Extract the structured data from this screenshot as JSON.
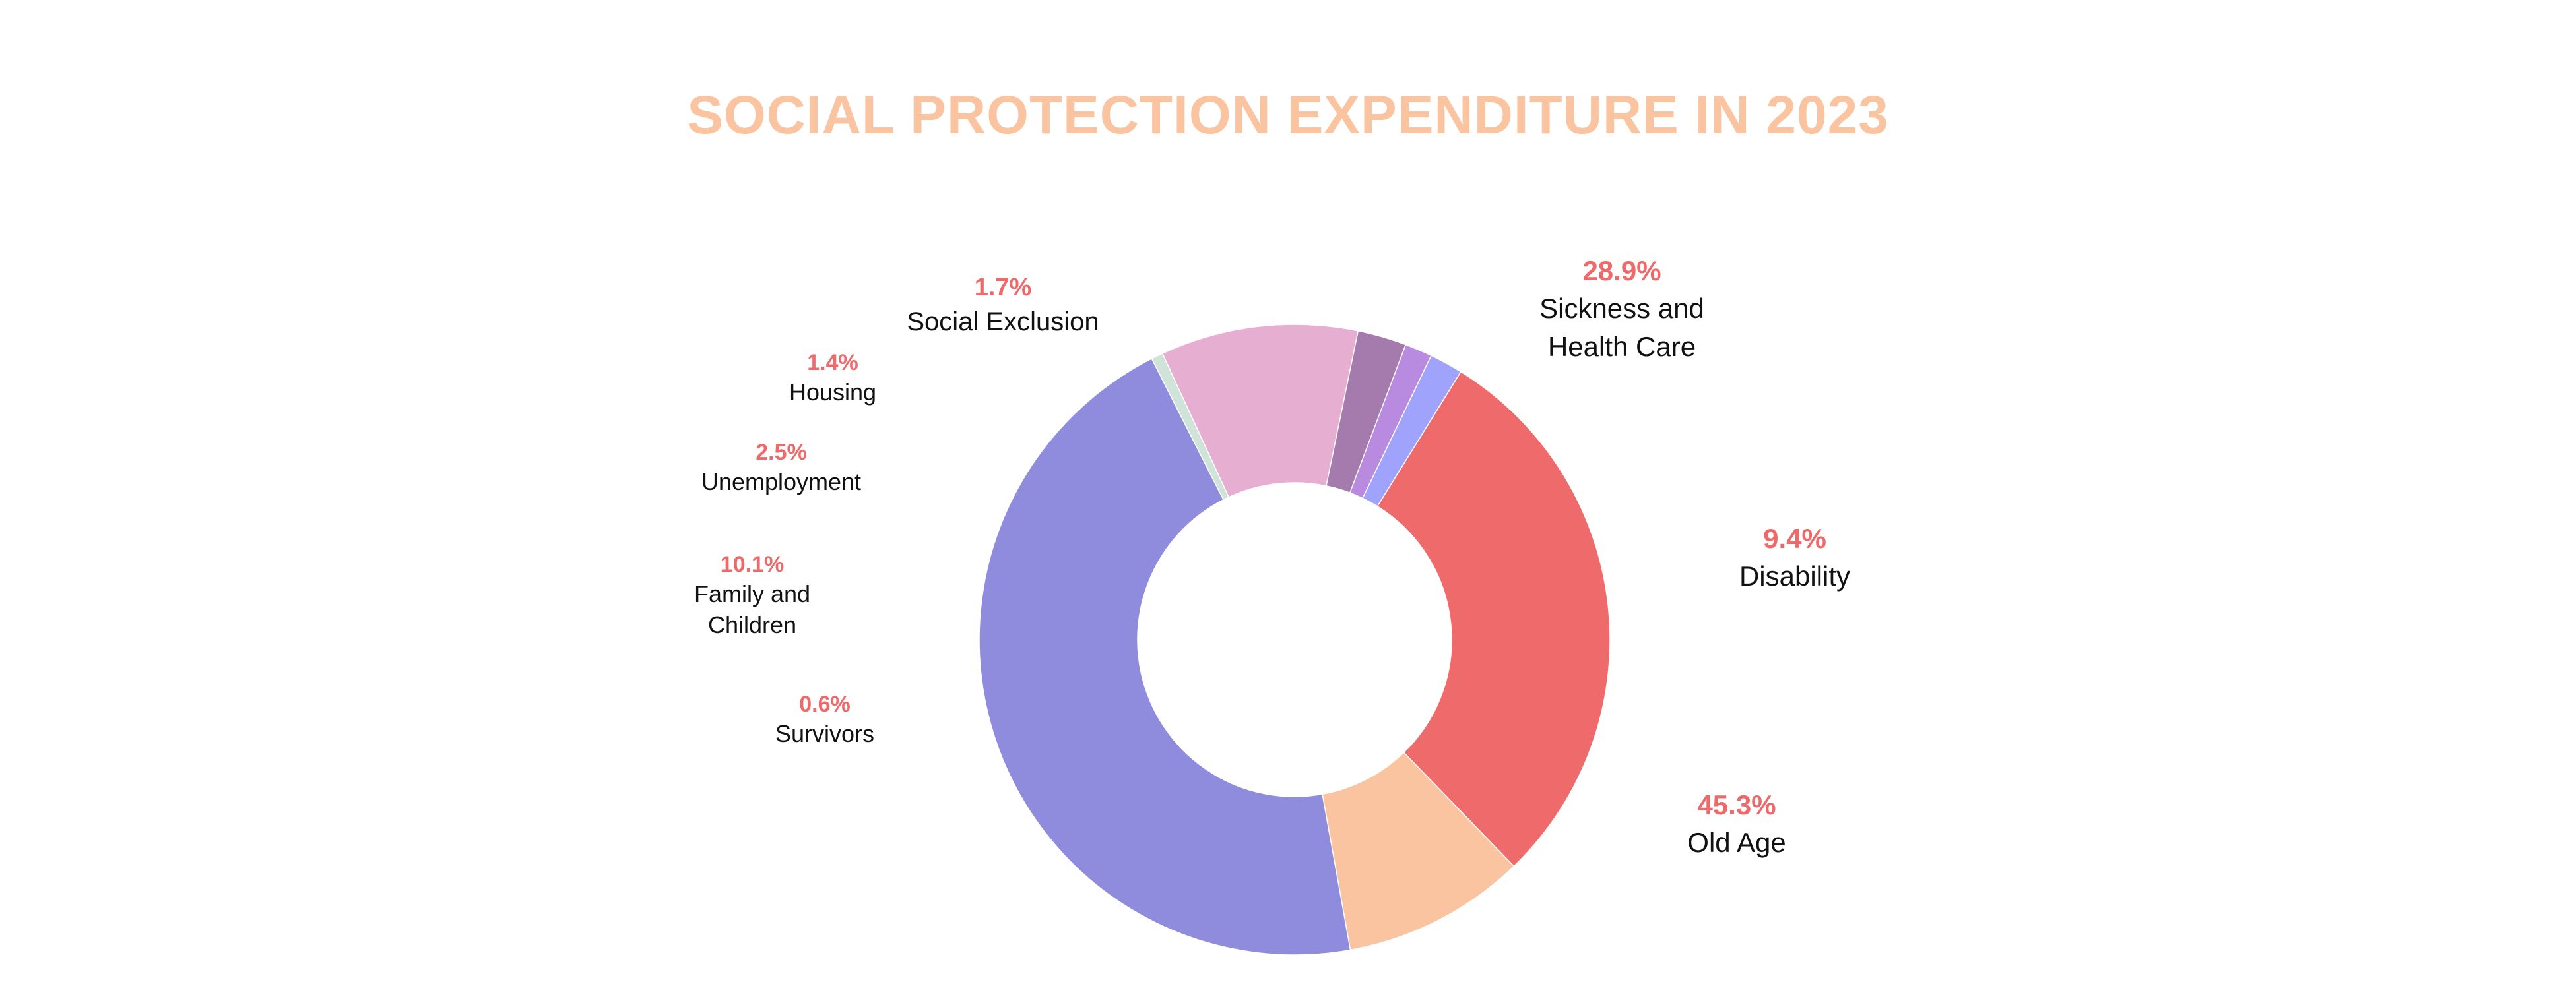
{
  "chart_data": {
    "type": "pie",
    "variant": "donut",
    "title": "SOCIAL PROTECTION EXPENDITURE IN 2023",
    "slices": [
      {
        "label": "Sickness and Health Care",
        "label_lines": [
          "Sickness and",
          "Health Care"
        ],
        "value": 28.9,
        "value_label": "28.9%",
        "color": "#ef6b6b"
      },
      {
        "label": "Disability",
        "label_lines": [
          "Disability"
        ],
        "value": 9.4,
        "value_label": "9.4%",
        "color": "#f9c49f"
      },
      {
        "label": "Old Age",
        "label_lines": [
          "Old Age"
        ],
        "value": 45.3,
        "value_label": "45.3%",
        "color": "#8f8cde"
      },
      {
        "label": "Survivors",
        "label_lines": [
          "Survivors"
        ],
        "value": 0.6,
        "value_label": "0.6%",
        "color": "#cfe3d8"
      },
      {
        "label": "Family and Children",
        "label_lines": [
          "Family and",
          "Children"
        ],
        "value": 10.1,
        "value_label": "10.1%",
        "color": "#e6aed1"
      },
      {
        "label": "Unemployment",
        "label_lines": [
          "Unemployment"
        ],
        "value": 2.5,
        "value_label": "2.5%",
        "color": "#a57aad"
      },
      {
        "label": "Housing",
        "label_lines": [
          "Housing"
        ],
        "value": 1.4,
        "value_label": "1.4%",
        "color": "#b88ae0"
      },
      {
        "label": "Social Exclusion",
        "label_lines": [
          "Social Exclusion"
        ],
        "value": 1.7,
        "value_label": "1.7%",
        "color": "#a0a3fb"
      }
    ],
    "legend": "none",
    "start_direction": "clockwise from upper-right"
  }
}
